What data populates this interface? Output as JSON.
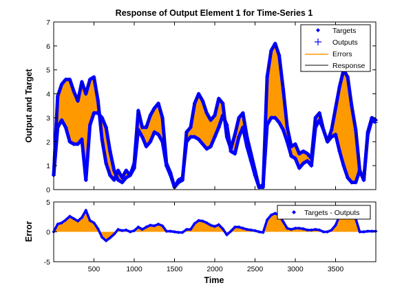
{
  "colors": {
    "targets": "#0000ff",
    "outputs": "#0000ff",
    "errors": "#ff9900",
    "response": "#000000",
    "axes": "#000000",
    "background": "#ffffff"
  },
  "chart_data": [
    {
      "type": "line",
      "title": "Response of Output Element 1 for Time-Series 1",
      "xlabel": "",
      "ylabel": "Output and Target",
      "xlim": [
        0,
        4000
      ],
      "ylim": [
        0,
        7
      ],
      "x_ticks": [
        500,
        1000,
        1500,
        2000,
        2500,
        3000,
        3500
      ],
      "x_tick_labels_visible": false,
      "y_ticks": [
        0,
        1,
        2,
        3,
        4,
        5,
        6,
        7
      ],
      "legend": {
        "position": "top-right",
        "entries": [
          "Targets",
          "Outputs",
          "Errors",
          "Response"
        ]
      },
      "x": [
        0,
        50,
        100,
        150,
        200,
        250,
        300,
        350,
        400,
        450,
        500,
        550,
        600,
        650,
        700,
        750,
        800,
        850,
        900,
        950,
        1000,
        1050,
        1100,
        1150,
        1200,
        1250,
        1300,
        1350,
        1400,
        1450,
        1500,
        1550,
        1600,
        1650,
        1700,
        1750,
        1800,
        1850,
        1900,
        1950,
        2000,
        2050,
        2100,
        2150,
        2200,
        2250,
        2300,
        2350,
        2400,
        2450,
        2500,
        2550,
        2600,
        2650,
        2700,
        2750,
        2800,
        2850,
        2900,
        2950,
        3000,
        3050,
        3100,
        3150,
        3200,
        3250,
        3300,
        3350,
        3400,
        3450,
        3500,
        3550,
        3600,
        3650,
        3700,
        3750,
        3800,
        3850,
        3900,
        3950,
        4000
      ],
      "series": [
        {
          "name": "Targets",
          "values": [
            0.6,
            3.9,
            4.4,
            4.6,
            4.6,
            4.1,
            3.7,
            4.5,
            4.0,
            4.6,
            4.7,
            3.7,
            2.1,
            1.1,
            0.6,
            0.4,
            0.8,
            0.5,
            0.8,
            0.6,
            1.1,
            3.3,
            2.6,
            2.6,
            3.1,
            3.4,
            3.6,
            3.0,
            1.1,
            0.7,
            0.1,
            0.3,
            0.4,
            2.4,
            2.6,
            3.6,
            4.0,
            3.7,
            3.2,
            2.9,
            3.1,
            3.8,
            3.6,
            2.2,
            1.7,
            2.3,
            3.0,
            3.2,
            2.2,
            1.5,
            0.8,
            0.1,
            0.1,
            4.7,
            5.8,
            6.1,
            5.6,
            4.2,
            2.6,
            1.8,
            1.9,
            1.5,
            1.6,
            1.5,
            1.3,
            3.0,
            3.2,
            2.5,
            2.0,
            2.5,
            3.4,
            4.3,
            5.0,
            4.7,
            3.5,
            2.5,
            0.8,
            0.4,
            2.4,
            3.0,
            2.9
          ]
        },
        {
          "name": "Outputs",
          "values": [
            0.6,
            2.6,
            2.9,
            2.6,
            2.0,
            1.9,
            1.9,
            2.1,
            0.4,
            2.7,
            3.2,
            3.2,
            3.0,
            2.6,
            1.6,
            0.8,
            0.4,
            0.3,
            0.5,
            0.6,
            0.9,
            2.5,
            2.2,
            1.8,
            2.0,
            2.4,
            2.3,
            2.0,
            1.0,
            0.6,
            0.1,
            0.4,
            0.5,
            2.0,
            2.2,
            2.2,
            2.1,
            1.9,
            1.7,
            1.8,
            2.2,
            2.6,
            3.1,
            2.7,
            1.6,
            1.5,
            2.2,
            2.6,
            1.8,
            1.2,
            0.6,
            0.1,
            0.2,
            2.7,
            3.0,
            3.0,
            2.8,
            2.5,
            2.0,
            1.4,
            1.3,
            0.9,
            1.1,
            1.2,
            1.0,
            2.6,
            2.9,
            2.5,
            2.0,
            2.2,
            2.3,
            1.6,
            1.0,
            0.5,
            0.3,
            0.3,
            0.8,
            0.4,
            2.3,
            2.9,
            2.8
          ]
        }
      ]
    },
    {
      "type": "line",
      "title": "",
      "xlabel": "Time",
      "ylabel": "Error",
      "xlim": [
        0,
        4000
      ],
      "ylim": [
        -5,
        5
      ],
      "x_ticks": [
        500,
        1000,
        1500,
        2000,
        2500,
        3000,
        3500
      ],
      "y_ticks": [
        -5,
        0,
        5
      ],
      "legend": {
        "position": "top-right",
        "entries": [
          "Targets - Outputs"
        ]
      },
      "x": [
        0,
        50,
        100,
        150,
        200,
        250,
        300,
        350,
        400,
        450,
        500,
        550,
        600,
        650,
        700,
        750,
        800,
        850,
        900,
        950,
        1000,
        1050,
        1100,
        1150,
        1200,
        1250,
        1300,
        1350,
        1400,
        1450,
        1500,
        1550,
        1600,
        1650,
        1700,
        1750,
        1800,
        1850,
        1900,
        1950,
        2000,
        2050,
        2100,
        2150,
        2200,
        2250,
        2300,
        2350,
        2400,
        2450,
        2500,
        2550,
        2600,
        2650,
        2700,
        2750,
        2800,
        2850,
        2900,
        2950,
        3000,
        3050,
        3100,
        3150,
        3200,
        3250,
        3300,
        3350,
        3400,
        3450,
        3500,
        3550,
        3600,
        3650,
        3700,
        3750,
        3800,
        3850,
        3900,
        3950,
        4000
      ],
      "series": [
        {
          "name": "Targets - Outputs",
          "values": [
            0.0,
            1.3,
            1.5,
            2.0,
            2.6,
            2.2,
            1.8,
            2.4,
            3.6,
            1.9,
            1.5,
            0.5,
            -0.9,
            -1.5,
            -1.0,
            -0.4,
            0.4,
            0.2,
            0.3,
            0.0,
            0.2,
            0.8,
            0.4,
            0.8,
            1.1,
            1.0,
            1.3,
            1.0,
            0.1,
            0.1,
            0.0,
            -0.1,
            -0.1,
            0.4,
            0.4,
            1.4,
            1.9,
            1.8,
            1.5,
            1.1,
            0.9,
            1.2,
            0.5,
            -0.5,
            0.1,
            0.8,
            0.8,
            0.6,
            0.4,
            0.3,
            0.2,
            0.0,
            -0.1,
            2.0,
            2.8,
            3.1,
            2.8,
            1.7,
            0.6,
            0.4,
            0.6,
            0.6,
            0.5,
            0.3,
            0.3,
            0.4,
            0.3,
            0.0,
            0.0,
            0.3,
            1.1,
            2.7,
            4.0,
            4.2,
            3.2,
            2.2,
            0.0,
            0.0,
            0.1,
            0.1,
            0.1
          ]
        }
      ]
    }
  ]
}
